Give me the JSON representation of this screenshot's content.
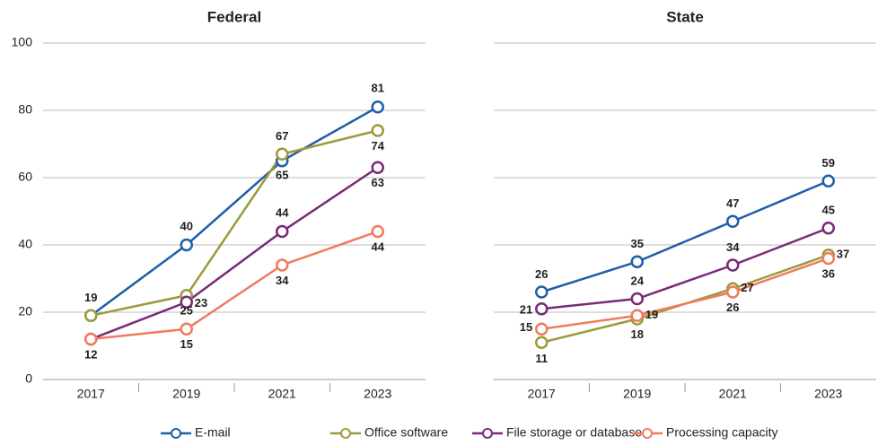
{
  "chart_data": [
    {
      "type": "line",
      "title": "Federal",
      "categories": [
        "2017",
        "2019",
        "2021",
        "2023"
      ],
      "ylim": [
        0,
        100
      ],
      "yticks": [
        0,
        20,
        40,
        60,
        80,
        100
      ],
      "grid": true,
      "series": [
        {
          "name": "E-mail",
          "color": "#1f5fa8",
          "values": [
            19,
            40,
            65,
            81
          ],
          "value_labels": [
            "19",
            "40",
            "65",
            "81"
          ]
        },
        {
          "name": "Office software",
          "color": "#9c9a3c",
          "values": [
            19,
            25,
            67,
            74
          ],
          "value_labels": [
            null,
            "25",
            "67",
            "74"
          ]
        },
        {
          "name": "File storage or database",
          "color": "#7a2a78",
          "values": [
            12,
            23,
            44,
            63
          ],
          "value_labels": [
            "12",
            "23",
            "44",
            "63"
          ]
        },
        {
          "name": "Processing capacity",
          "color": "#f07b5c",
          "values": [
            12,
            15,
            34,
            44
          ],
          "value_labels": [
            null,
            "15",
            "34",
            "44"
          ]
        }
      ]
    },
    {
      "type": "line",
      "title": "State",
      "categories": [
        "2017",
        "2019",
        "2021",
        "2023"
      ],
      "ylim": [
        0,
        100
      ],
      "yticks": [
        0,
        20,
        40,
        60,
        80,
        100
      ],
      "grid": true,
      "series": [
        {
          "name": "E-mail",
          "color": "#1f5fa8",
          "values": [
            26,
            35,
            47,
            59
          ]
        },
        {
          "name": "Office software",
          "color": "#9c9a3c",
          "values": [
            11,
            18,
            27,
            37
          ]
        },
        {
          "name": "File storage or database",
          "color": "#7a2a78",
          "values": [
            21,
            24,
            34,
            45
          ]
        },
        {
          "name": "Processing capacity",
          "color": "#f07b5c",
          "values": [
            15,
            19,
            26,
            36
          ]
        }
      ]
    }
  ]
}
